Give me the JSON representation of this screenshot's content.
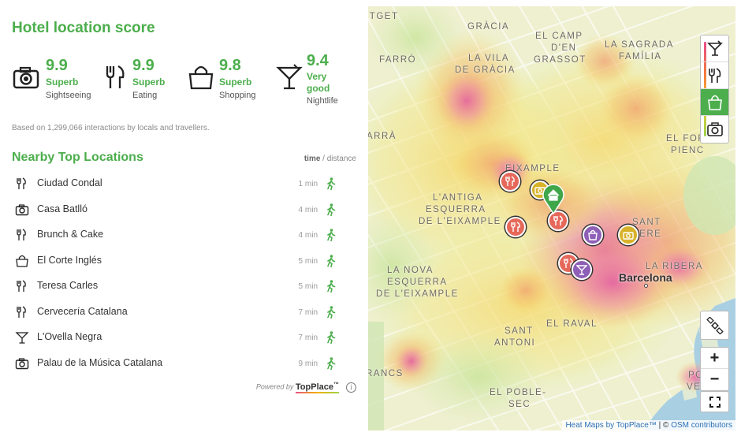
{
  "title": "Hotel location score",
  "scores": [
    {
      "value": "9.9",
      "rating": "Superb",
      "category": "Sightseeing",
      "icon": "camera-icon"
    },
    {
      "value": "9.9",
      "rating": "Superb",
      "category": "Eating",
      "icon": "fork-knife-icon"
    },
    {
      "value": "9.8",
      "rating": "Superb",
      "category": "Shopping",
      "icon": "shopping-bag-icon"
    },
    {
      "value": "9.4",
      "rating_line1": "Very",
      "rating_line2": "good",
      "category": "Nightlife",
      "icon": "cocktail-icon"
    }
  ],
  "based_on": "Based on 1,299,066 interactions by locals and travellers.",
  "nearby": {
    "title": "Nearby Top Locations",
    "header_time": "time",
    "header_sep": " / ",
    "header_distance": "distance",
    "items": [
      {
        "name": "Ciudad Condal",
        "time": "1 min",
        "icon": "fork-knife-icon"
      },
      {
        "name": "Casa Batlló",
        "time": "4 min",
        "icon": "camera-icon"
      },
      {
        "name": "Brunch & Cake",
        "time": "4 min",
        "icon": "fork-knife-icon"
      },
      {
        "name": "El Corte Inglés",
        "time": "5 min",
        "icon": "shopping-bag-icon"
      },
      {
        "name": "Teresa Carles",
        "time": "5 min",
        "icon": "fork-knife-icon"
      },
      {
        "name": "Cervecería Catalana",
        "time": "7 min",
        "icon": "fork-knife-icon"
      },
      {
        "name": "L'Ovella Negra",
        "time": "7 min",
        "icon": "cocktail-icon"
      },
      {
        "name": "Palau de la Música Catalana",
        "time": "9 min",
        "icon": "camera-icon"
      }
    ]
  },
  "powered_by": {
    "prefix": "Powered by",
    "brand": "TopPlace",
    "tm": "™"
  },
  "map": {
    "labels": [
      {
        "id": "utget",
        "text": "UTGET"
      },
      {
        "id": "gracia",
        "text": "GRÀCIA"
      },
      {
        "id": "elcamp1",
        "text": "EL CAMP"
      },
      {
        "id": "elcamp2",
        "text": "D'EN"
      },
      {
        "id": "elcamp3",
        "text": "GRASSOT"
      },
      {
        "id": "sagrada1",
        "text": "LA SAGRADA"
      },
      {
        "id": "sagrada2",
        "text": "FAMÍLIA"
      },
      {
        "id": "farro",
        "text": "FARRÓ"
      },
      {
        "id": "vila1",
        "text": "LA VILA"
      },
      {
        "id": "vila2",
        "text": "DE GRÀCIA"
      },
      {
        "id": "arra",
        "text": "ARRÀ"
      },
      {
        "id": "fort1",
        "text": "EL FOR"
      },
      {
        "id": "fort2",
        "text": "PIENC"
      },
      {
        "id": "eixample",
        "text": "EIXAMPLE"
      },
      {
        "id": "antiga1",
        "text": "L'ANTIGA"
      },
      {
        "id": "antiga2",
        "text": "ESQUERRA"
      },
      {
        "id": "antiga3",
        "text": "DE L'EIXAMPLE"
      },
      {
        "id": "sant1",
        "text": "SANT"
      },
      {
        "id": "sant2",
        "text": "PERE"
      },
      {
        "id": "nova1",
        "text": "LA NOVA"
      },
      {
        "id": "nova2",
        "text": "ESQUERRA"
      },
      {
        "id": "nova3",
        "text": "DE L'EIXAMPLE"
      },
      {
        "id": "ribera",
        "text": "LA RIBERA"
      },
      {
        "id": "raval",
        "text": "EL RAVAL"
      },
      {
        "id": "santantoni1",
        "text": "SANT"
      },
      {
        "id": "santantoni2",
        "text": "ANTONI"
      },
      {
        "id": "rancs",
        "text": "RANCS"
      },
      {
        "id": "poble1",
        "text": "EL POBLE-"
      },
      {
        "id": "poble2",
        "text": "SEC"
      },
      {
        "id": "pobvel1",
        "text": "PO"
      },
      {
        "id": "pobvel2",
        "text": "VEL"
      }
    ],
    "city": "Barcelona",
    "zoom_in": "+",
    "zoom_out": "−",
    "attribution_link": "Heat Maps by TopPlace™",
    "attribution_sep": " | © ",
    "attribution_osm": "OSM contributors"
  },
  "colors": {
    "accent": "#4cae4c",
    "pin_red": "#e6685a",
    "pin_purple": "#8e5fb7",
    "pin_gold": "#d8b32a"
  }
}
